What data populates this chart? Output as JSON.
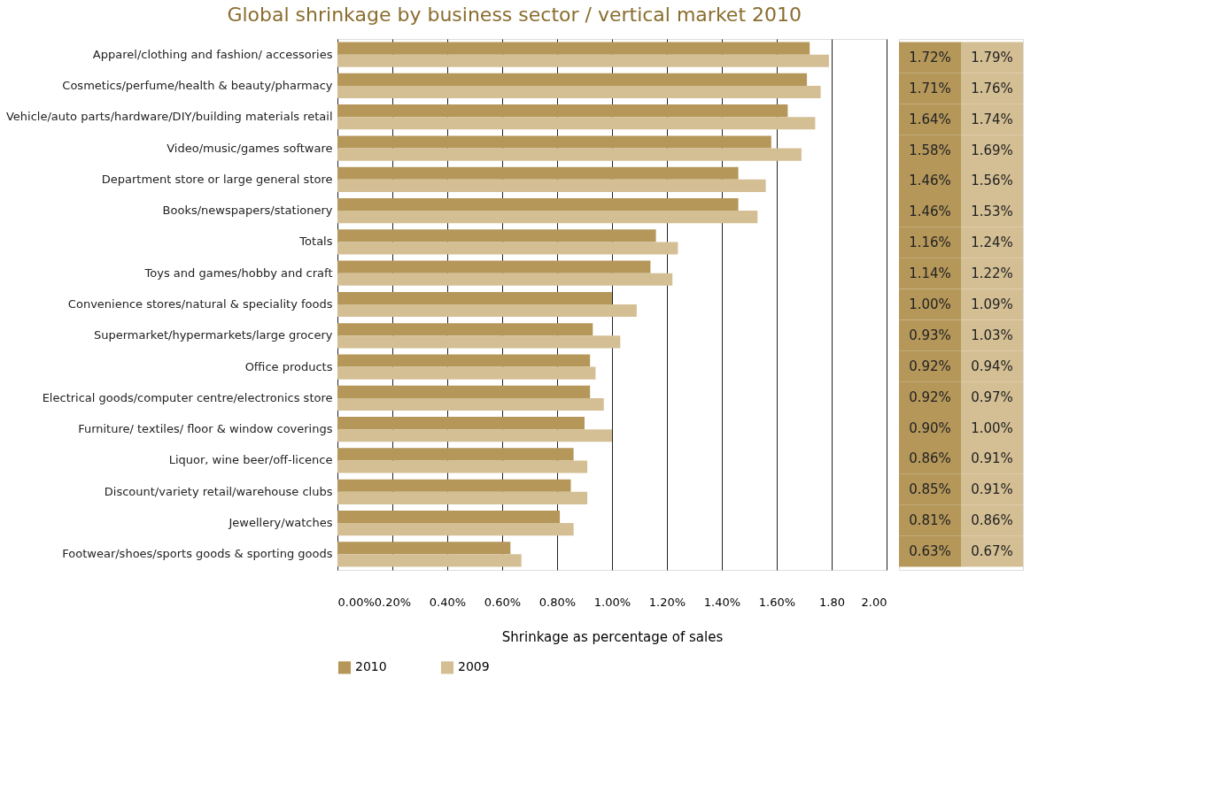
{
  "chart_data": {
    "type": "bar",
    "orientation": "horizontal",
    "title": "Global shrinkage by business sector / vertical market 2010",
    "xlabel": "Shrinkage as percentage of sales",
    "categories": [
      "Apparel/clothing and fashion/ accessories",
      "Cosmetics/perfume/health & beauty/pharmacy",
      "Vehicle/auto parts/hardware/DIY/building materials retail",
      "Video/music/games software",
      "Department store or large general store",
      "Books/newspapers/stationery",
      "Totals",
      "Toys and games/hobby and craft",
      "Convenience stores/natural & speciality foods",
      "Supermarket/hypermarkets/large grocery",
      "Office products",
      "Electrical goods/computer centre/electronics store",
      "Furniture/ textiles/ floor & window coverings",
      "Liquor, wine beer/off-licence",
      "Discount/variety retail/warehouse clubs",
      "Jewellery/watches",
      "Footwear/shoes/sports goods & sporting goods"
    ],
    "series": [
      {
        "name": "2010",
        "color": "#b5975a",
        "values": [
          1.72,
          1.71,
          1.64,
          1.58,
          1.46,
          1.46,
          1.16,
          1.14,
          1.0,
          0.93,
          0.92,
          0.92,
          0.9,
          0.86,
          0.85,
          0.81,
          0.63
        ],
        "value_labels": [
          "1.72%",
          "1.71%",
          "1.64%",
          "1.58%",
          "1.46%",
          "1.46%",
          "1.16%",
          "1.14%",
          "1.00%",
          "0.93%",
          "0.92%",
          "0.92%",
          "0.90%",
          "0.86%",
          "0.85%",
          "0.81%",
          "0.63%"
        ]
      },
      {
        "name": "2009",
        "color": "#d4bf94",
        "values": [
          1.79,
          1.76,
          1.74,
          1.69,
          1.56,
          1.53,
          1.24,
          1.22,
          1.09,
          1.03,
          0.94,
          0.97,
          1.0,
          0.91,
          0.91,
          0.86,
          0.67
        ],
        "value_labels": [
          "1.79%",
          "1.76%",
          "1.74%",
          "1.69%",
          "1.56%",
          "1.53%",
          "1.24%",
          "1.22%",
          "1.09%",
          "1.03%",
          "0.94%",
          "0.97%",
          "1.00%",
          "0.91%",
          "0.91%",
          "0.86%",
          "0.67%"
        ]
      }
    ],
    "xlim": [
      0,
      2
    ],
    "xticks": [
      {
        "value": 0,
        "label": "0.00%"
      },
      {
        "value": 0.2,
        "label": "0.20%"
      },
      {
        "value": 0.4,
        "label": "0.40%"
      },
      {
        "value": 0.6,
        "label": "0.60%"
      },
      {
        "value": 0.8,
        "label": "0.80%"
      },
      {
        "value": 1.0,
        "label": "1.00%"
      },
      {
        "value": 1.2,
        "label": "1.20%"
      },
      {
        "value": 1.4,
        "label": "1.40%"
      },
      {
        "value": 1.6,
        "label": "1.60%"
      },
      {
        "value": 1.8,
        "label": "1.80"
      },
      {
        "value": 2.0,
        "label": "2.00"
      }
    ],
    "grid": "x",
    "legend": "bottom"
  }
}
